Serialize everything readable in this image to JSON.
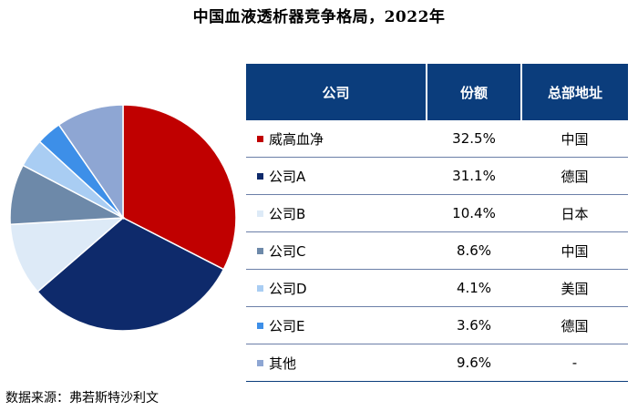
{
  "chart_data": {
    "type": "pie",
    "title": "中国血液透析器竞争格局，2022年",
    "columns": [
      "公司",
      "份额",
      "总部地址"
    ],
    "slices": [
      {
        "name": "威高血净",
        "share": 32.5,
        "share_label": "32.5%",
        "hq": "中国",
        "color": "#c00000"
      },
      {
        "name": "公司A",
        "share": 31.1,
        "share_label": "31.1%",
        "hq": "德国",
        "color": "#0e2a6b"
      },
      {
        "name": "公司B",
        "share": 10.4,
        "share_label": "10.4%",
        "hq": "日本",
        "color": "#ddeaf7"
      },
      {
        "name": "公司C",
        "share": 8.6,
        "share_label": "8.6%",
        "hq": "中国",
        "color": "#6d89a9"
      },
      {
        "name": "公司D",
        "share": 4.1,
        "share_label": "4.1%",
        "hq": "美国",
        "color": "#a9cdf3"
      },
      {
        "name": "公司E",
        "share": 3.6,
        "share_label": "3.6%",
        "hq": "德国",
        "color": "#3d8fe8"
      },
      {
        "name": "其他",
        "share": 9.6,
        "share_label": "9.6%",
        "hq": "-",
        "color": "#8ea6d3"
      }
    ]
  },
  "source": "数据来源：弗若斯特沙利文"
}
